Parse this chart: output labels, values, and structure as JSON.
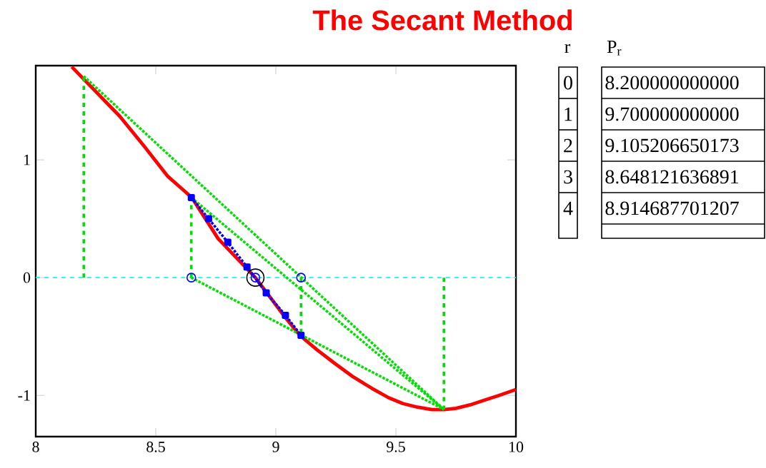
{
  "chart_data": {
    "type": "line",
    "title": "The Secant Method",
    "xlim": [
      8,
      10
    ],
    "ylim": [
      -1.35,
      1.8
    ],
    "xticks": [
      8,
      8.5,
      9,
      9.5,
      10
    ],
    "yticks": [
      -1,
      0,
      1
    ],
    "series": [
      {
        "color": "#ff0000",
        "line_style": "solid",
        "marker": "none",
        "x": [
          8.15,
          8.25,
          8.35,
          8.45,
          8.55,
          8.65,
          8.76,
          8.915,
          9.04,
          9.1,
          9.17,
          9.24,
          9.32,
          9.4,
          9.47,
          9.53,
          9.59,
          9.65,
          9.7,
          9.75,
          9.81,
          9.87,
          9.93,
          10
        ],
        "values": [
          1.79,
          1.58,
          1.37,
          1.12,
          0.86,
          0.68,
          0.33,
          0,
          -0.34,
          -0.49,
          -0.61,
          -0.72,
          -0.84,
          -0.94,
          -1.02,
          -1.07,
          -1.1,
          -1.12,
          -1.12,
          -1.11,
          -1.08,
          -1.04,
          -1.0,
          -0.95
        ]
      },
      {
        "color": "#00e000",
        "line_style": "dashed",
        "marker": "none",
        "x": [
          8.2,
          8.2
        ],
        "values": [
          0,
          1.71
        ]
      },
      {
        "color": "#00e000",
        "line_style": "dashed",
        "marker": "none",
        "x": [
          8.648,
          8.648
        ],
        "values": [
          0,
          0.68
        ]
      },
      {
        "color": "#00e000",
        "line_style": "dashed",
        "marker": "none",
        "x": [
          9.105,
          9.105
        ],
        "values": [
          0,
          -0.49
        ]
      },
      {
        "color": "#00e000",
        "line_style": "dashed",
        "marker": "none",
        "x": [
          9.7,
          9.7
        ],
        "values": [
          0,
          -1.12
        ]
      },
      {
        "color": "#00e000",
        "line_style": "dotted",
        "marker": "none",
        "x": [
          8.2,
          9.7
        ],
        "values": [
          1.71,
          -1.12
        ]
      },
      {
        "color": "#00e000",
        "line_style": "dotted",
        "marker": "none",
        "x": [
          8.648,
          9.7
        ],
        "values": [
          0.68,
          -1.12
        ]
      },
      {
        "color": "#00e000",
        "line_style": "dotted",
        "marker": "none",
        "x": [
          8.648,
          9.7
        ],
        "values": [
          0,
          -1.12
        ]
      },
      {
        "color": "#0000ff",
        "line_style": "dotted",
        "marker": "square",
        "x": [
          8.648,
          8.72,
          8.8,
          8.88,
          8.96,
          9.04,
          9.105
        ],
        "values": [
          0.68,
          0.5,
          0.3,
          0.09,
          -0.13,
          -0.32,
          -0.49
        ]
      },
      {
        "type": "scatter",
        "color": "#0000ff",
        "marker": "circle",
        "x": [
          8.648,
          8.915,
          9.105
        ],
        "values": [
          0,
          0,
          0
        ]
      },
      {
        "type": "scatter",
        "color": "#000000",
        "marker": "circle",
        "x": [
          8.915
        ],
        "values": [
          0
        ]
      }
    ],
    "ref_lines": [
      {
        "axis": "y",
        "value": 0,
        "color": "#00ffff",
        "line_style": "dashed"
      }
    ],
    "annotations": [
      "r",
      "P$_{r}$",
      "0",
      "8.200000000000",
      "1",
      "9.700000000000",
      "2",
      "9.105206650173",
      "3",
      "8.648121636891",
      "4",
      "8.914687701207"
    ]
  }
}
